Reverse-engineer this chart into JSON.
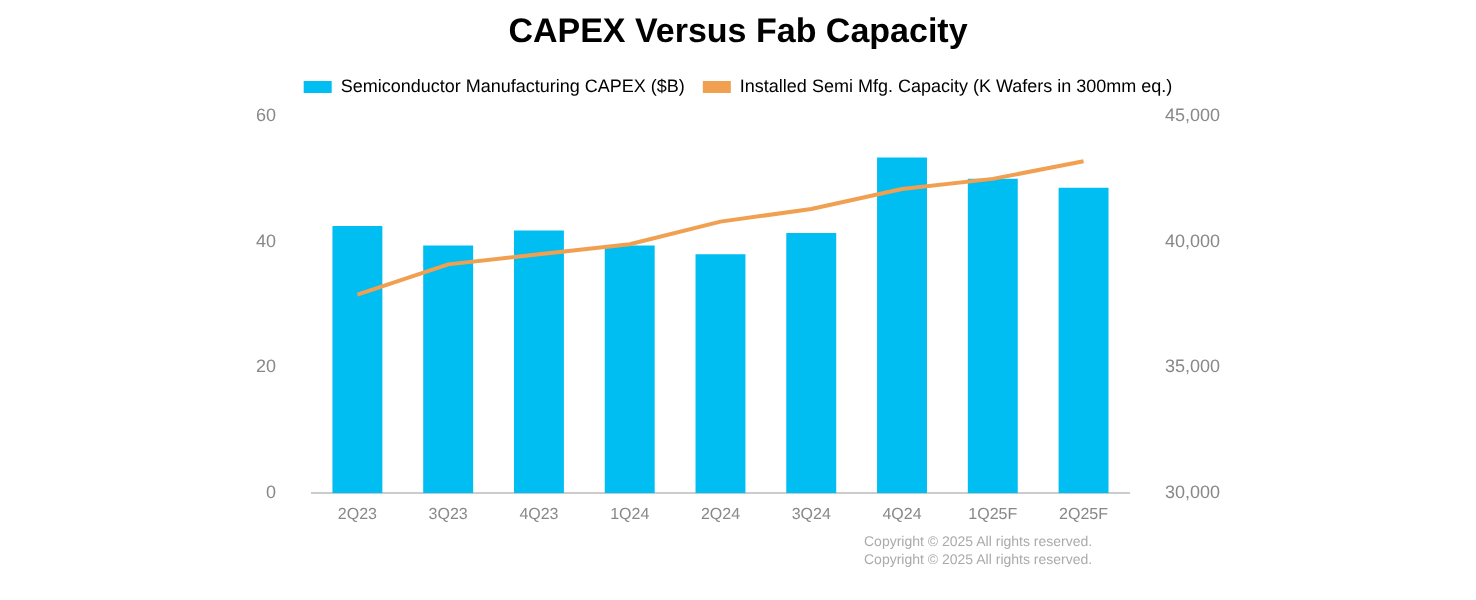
{
  "chart_data": {
    "type": "bar",
    "title": "CAPEX Versus Fab Capacity",
    "categories": [
      "2Q23",
      "3Q23",
      "4Q23",
      "1Q24",
      "2Q24",
      "3Q24",
      "4Q24",
      "1Q25F",
      "2Q25F"
    ],
    "series": [
      {
        "name": "Semiconductor Manufacturing CAPEX ($B)",
        "color": "#00bdf2",
        "values": [
          42.5,
          39.4,
          41.8,
          39.4,
          38,
          41.4,
          53.4,
          50,
          48.6
        ]
      },
      {
        "name": "Installed Semi Mfg. Capacity (K Wafers in 300mm eq.)",
        "type": "line",
        "axis": "y2",
        "color": "#f0a050",
        "values": [
          37900,
          39100,
          39500,
          39900,
          40800,
          41300,
          42100,
          42500,
          43200
        ]
      }
    ],
    "ylim": [
      0,
      60
    ],
    "yticks": [
      0,
      20,
      40,
      60
    ],
    "y2lim": [
      30000,
      45000
    ],
    "y2ticks": [
      {
        "value": 30000,
        "label": "30,000"
      },
      {
        "value": 35000,
        "label": "35,000"
      },
      {
        "value": 40000,
        "label": "40,000"
      },
      {
        "value": 45000,
        "label": "45,000"
      }
    ],
    "grid": false,
    "legend": "top",
    "marker": "none",
    "annotations": [
      "Copyright © 2025 All rights reserved.",
      "Copyright © 2025 All rights reserved."
    ]
  }
}
